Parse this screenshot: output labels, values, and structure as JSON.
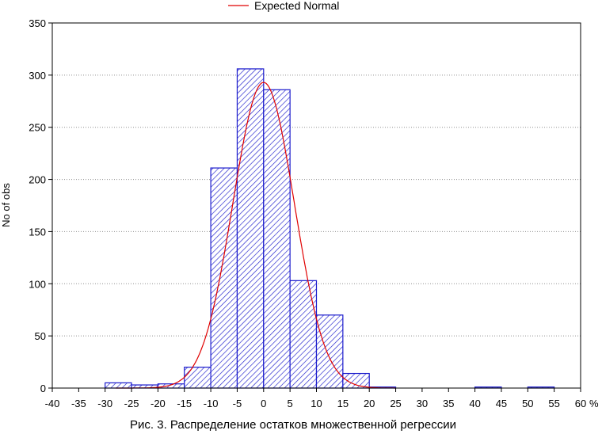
{
  "chart_data": {
    "type": "bar",
    "legend": [
      {
        "name": "Expected Normal",
        "color": "#e00000"
      }
    ],
    "legend_position": "top-center",
    "xlabel": "%",
    "ylabel": "No of obs",
    "xlim": [
      -40,
      60
    ],
    "ylim": [
      0,
      350
    ],
    "x_ticks": [
      -40,
      -35,
      -30,
      -25,
      -20,
      -15,
      -10,
      -5,
      0,
      5,
      10,
      15,
      20,
      25,
      30,
      35,
      40,
      45,
      50,
      55,
      60
    ],
    "y_ticks": [
      0,
      50,
      100,
      150,
      200,
      250,
      300,
      350
    ],
    "grid": "horizontal dotted",
    "bin_width": 5,
    "bars": [
      {
        "from": -30,
        "to": -25,
        "value": 5
      },
      {
        "from": -25,
        "to": -20,
        "value": 3
      },
      {
        "from": -20,
        "to": -15,
        "value": 4
      },
      {
        "from": -15,
        "to": -10,
        "value": 20
      },
      {
        "from": -10,
        "to": -5,
        "value": 211
      },
      {
        "from": -5,
        "to": 0,
        "value": 306
      },
      {
        "from": 0,
        "to": 5,
        "value": 286
      },
      {
        "from": 5,
        "to": 10,
        "value": 103
      },
      {
        "from": 10,
        "to": 15,
        "value": 70
      },
      {
        "from": 15,
        "to": 20,
        "value": 14
      },
      {
        "from": 20,
        "to": 25,
        "value": 1
      },
      {
        "from": 40,
        "to": 45,
        "value": 1
      },
      {
        "from": 50,
        "to": 55,
        "value": 1
      }
    ],
    "bar_color": "#1a1acc",
    "normal_curve": {
      "name": "Expected Normal",
      "color": "#e00000",
      "mean": 0,
      "std": 5.8,
      "peak": 293,
      "x_range": [
        -28,
        25
      ]
    }
  },
  "caption": "Рис. 3. Распределение остатков множественной регрессии"
}
